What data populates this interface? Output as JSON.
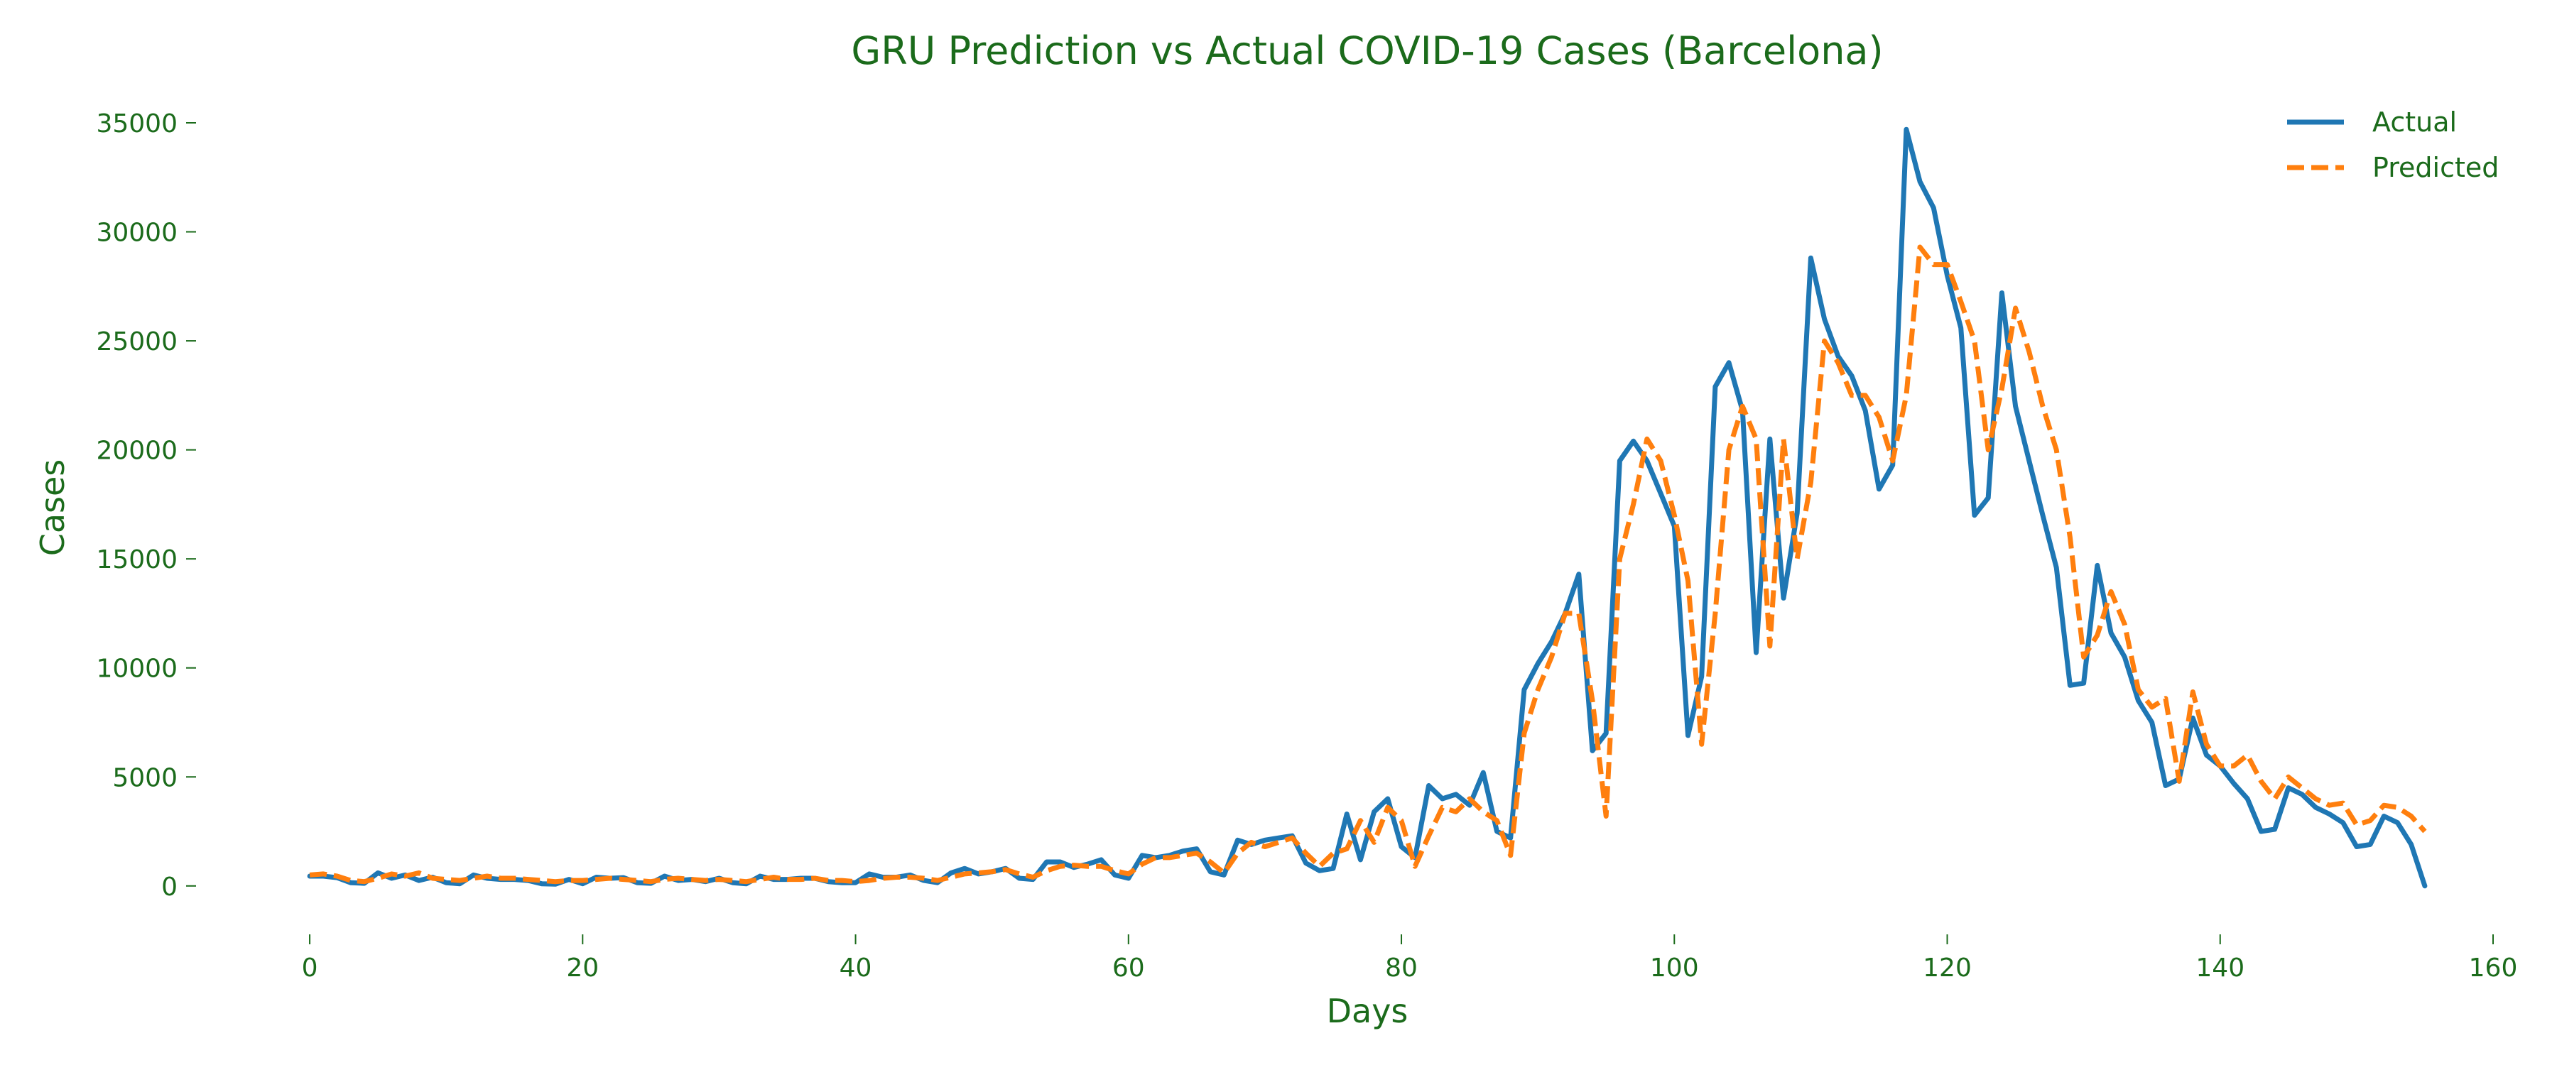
{
  "chart_data": {
    "type": "line",
    "title": "GRU Prediction vs Actual COVID-19 Cases (Barcelona)",
    "xlabel": "Days",
    "ylabel": "Cases",
    "xlim": [
      -5,
      160
    ],
    "ylim": [
      -1700,
      36400
    ],
    "xticks": [
      0,
      20,
      40,
      60,
      80,
      100,
      120,
      140,
      160
    ],
    "yticks": [
      0,
      5000,
      10000,
      15000,
      20000,
      25000,
      30000,
      35000
    ],
    "grid": false,
    "legend_position": "top-right",
    "text_color": "#1b6b1b",
    "series": [
      {
        "name": "Actual",
        "color": "#1f77b4",
        "style": "solid",
        "x": [
          0,
          1,
          2,
          3,
          4,
          5,
          6,
          7,
          8,
          9,
          10,
          11,
          12,
          13,
          14,
          15,
          16,
          17,
          18,
          19,
          20,
          21,
          22,
          23,
          24,
          25,
          26,
          27,
          28,
          29,
          30,
          31,
          32,
          33,
          34,
          35,
          36,
          37,
          38,
          39,
          40,
          41,
          42,
          43,
          44,
          45,
          46,
          47,
          48,
          49,
          50,
          51,
          52,
          53,
          54,
          55,
          56,
          57,
          58,
          59,
          60,
          61,
          62,
          63,
          64,
          65,
          66,
          67,
          68,
          69,
          70,
          71,
          72,
          73,
          74,
          75,
          76,
          77,
          78,
          79,
          80,
          81,
          82,
          83,
          84,
          85,
          86,
          87,
          88,
          89,
          90,
          91,
          92,
          93,
          94,
          95,
          96,
          97,
          98,
          99,
          100,
          101,
          102,
          103,
          104,
          105,
          106,
          107,
          108,
          109,
          110,
          111,
          112,
          113,
          114,
          115,
          116,
          117,
          118,
          119,
          120,
          121,
          122,
          123,
          124,
          125,
          126,
          127,
          128,
          129,
          130,
          131,
          132,
          133,
          134,
          135,
          136,
          137,
          138,
          139,
          140,
          141,
          142,
          143,
          144,
          145,
          146,
          147,
          148,
          149,
          150,
          151,
          152,
          153,
          154,
          155
        ],
        "values": [
          450,
          450,
          380,
          150,
          120,
          600,
          350,
          500,
          250,
          400,
          150,
          100,
          500,
          350,
          300,
          300,
          250,
          100,
          80,
          300,
          100,
          400,
          350,
          380,
          150,
          120,
          450,
          250,
          300,
          200,
          350,
          150,
          100,
          450,
          300,
          300,
          350,
          350,
          200,
          150,
          150,
          550,
          400,
          400,
          500,
          250,
          150,
          600,
          800,
          550,
          650,
          800,
          350,
          300,
          1100,
          1100,
          850,
          1000,
          1200,
          500,
          350,
          1400,
          1300,
          1400,
          1600,
          1700,
          650,
          500,
          2100,
          1900,
          2100,
          2200,
          2300,
          1050,
          700,
          800,
          3300,
          1200,
          3400,
          4000,
          1800,
          1300,
          4600,
          4000,
          4200,
          3700,
          5200,
          2500,
          2200,
          9000,
          10200,
          11200,
          12500,
          14300,
          6200,
          7000,
          19500,
          20400,
          19500,
          18000,
          16500,
          6900,
          9600,
          22900,
          24000,
          21800,
          10700,
          20500,
          13200,
          17100,
          28800,
          26000,
          24300,
          23400,
          21800,
          18200,
          19300,
          34700,
          32300,
          31100,
          28000,
          25600,
          17000,
          17800,
          27200,
          22000,
          19500,
          17000,
          14600,
          9200,
          9300,
          14700,
          11600,
          10500,
          8500,
          7500,
          4600,
          4900,
          7700,
          6000,
          5500,
          4700,
          4000,
          2500,
          2600,
          4500,
          4200,
          3600,
          3300,
          2900,
          1800,
          1900,
          3200,
          2900,
          1900,
          0
        ]
      },
      {
        "name": "Predicted",
        "color": "#ff7f0e",
        "style": "dashed",
        "x": [
          0,
          1,
          2,
          3,
          4,
          5,
          6,
          7,
          8,
          9,
          10,
          11,
          12,
          13,
          14,
          15,
          16,
          17,
          18,
          19,
          20,
          21,
          22,
          23,
          24,
          25,
          26,
          27,
          28,
          29,
          30,
          31,
          32,
          33,
          34,
          35,
          36,
          37,
          38,
          39,
          40,
          41,
          42,
          43,
          44,
          45,
          46,
          47,
          48,
          49,
          50,
          51,
          52,
          53,
          54,
          55,
          56,
          57,
          58,
          59,
          60,
          61,
          62,
          63,
          64,
          65,
          66,
          67,
          68,
          69,
          70,
          71,
          72,
          73,
          74,
          75,
          76,
          77,
          78,
          79,
          80,
          81,
          82,
          83,
          84,
          85,
          86,
          87,
          88,
          89,
          90,
          91,
          92,
          93,
          94,
          95,
          96,
          97,
          98,
          99,
          100,
          101,
          102,
          103,
          104,
          105,
          106,
          107,
          108,
          109,
          110,
          111,
          112,
          113,
          114,
          115,
          116,
          117,
          118,
          119,
          120,
          121,
          122,
          123,
          124,
          125,
          126,
          127,
          128,
          129,
          130,
          131,
          132,
          133,
          134,
          135,
          136,
          137,
          138,
          139,
          140,
          141,
          142,
          143,
          144,
          145,
          146,
          147,
          148,
          149,
          150,
          151,
          152,
          153,
          154,
          155
        ],
        "values": [
          500,
          550,
          450,
          250,
          200,
          350,
          550,
          450,
          600,
          350,
          300,
          250,
          350,
          450,
          350,
          350,
          300,
          250,
          200,
          250,
          250,
          300,
          350,
          300,
          250,
          200,
          300,
          350,
          300,
          250,
          300,
          250,
          200,
          300,
          400,
          300,
          300,
          350,
          250,
          250,
          200,
          250,
          350,
          400,
          400,
          350,
          250,
          400,
          550,
          600,
          650,
          750,
          550,
          400,
          700,
          900,
          950,
          900,
          900,
          700,
          550,
          1000,
          1300,
          1300,
          1400,
          1500,
          1100,
          600,
          1500,
          2000,
          1800,
          2000,
          2200,
          1500,
          900,
          1500,
          1700,
          3000,
          2000,
          3600,
          3000,
          900,
          2300,
          3600,
          3400,
          4000,
          3400,
          3000,
          1400,
          7000,
          9000,
          10500,
          12500,
          12500,
          8500,
          3200,
          15000,
          17500,
          20500,
          19500,
          17000,
          14000,
          6500,
          12500,
          20000,
          22000,
          20500,
          11000,
          20500,
          15000,
          18500,
          25000,
          24000,
          22500,
          22500,
          21500,
          19500,
          22500,
          29300,
          28500,
          28500,
          26800,
          25000,
          20000,
          22800,
          26500,
          24500,
          22000,
          20000,
          16000,
          10500,
          11500,
          13500,
          12000,
          9000,
          8200,
          8600,
          4800,
          8900,
          6500,
          5500,
          5500,
          6000,
          4800,
          4000,
          5000,
          4500,
          4000,
          3700,
          3800,
          2800,
          3000,
          3700,
          3600,
          3200,
          2500
        ]
      }
    ]
  }
}
